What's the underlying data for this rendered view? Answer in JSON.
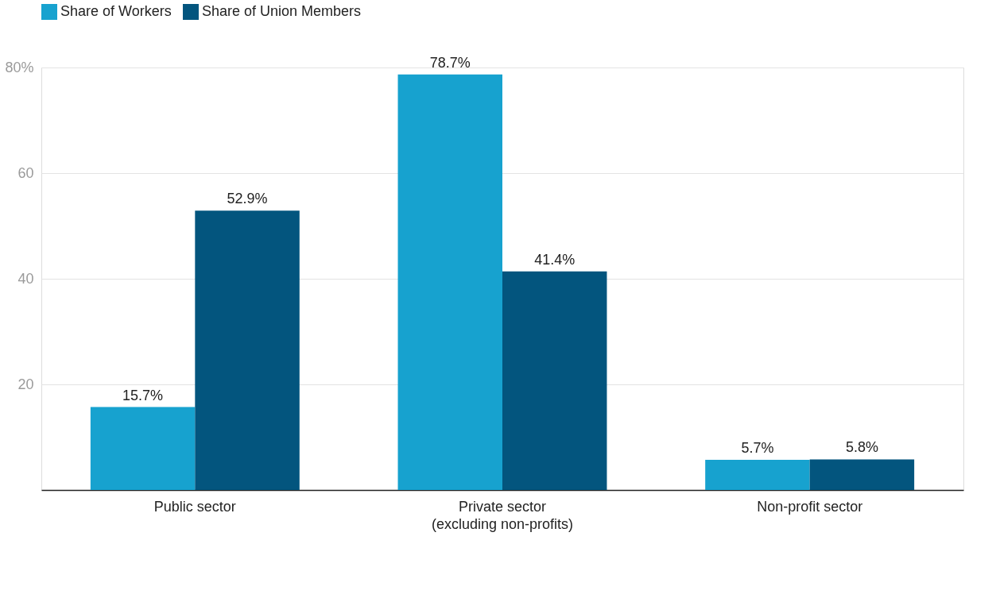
{
  "chart_data": {
    "type": "bar",
    "categories": [
      "Public sector",
      "Private sector\n(excluding non-profits)",
      "Non-profit sector"
    ],
    "series": [
      {
        "name": "Share of Workers",
        "color": "#17a2cf",
        "values": [
          15.7,
          78.7,
          5.7
        ],
        "value_labels": [
          "15.7%",
          "78.7%",
          "5.7%"
        ]
      },
      {
        "name": "Share of Union Members",
        "color": "#03557e",
        "values": [
          52.9,
          41.4,
          5.8
        ],
        "value_labels": [
          "52.9%",
          "41.4%",
          "5.8%"
        ]
      }
    ],
    "ylim": [
      0,
      80
    ],
    "yticks": [
      20,
      40,
      60,
      {
        "value": 80,
        "label": "80%"
      }
    ],
    "grid": "y",
    "legend": "top left"
  }
}
